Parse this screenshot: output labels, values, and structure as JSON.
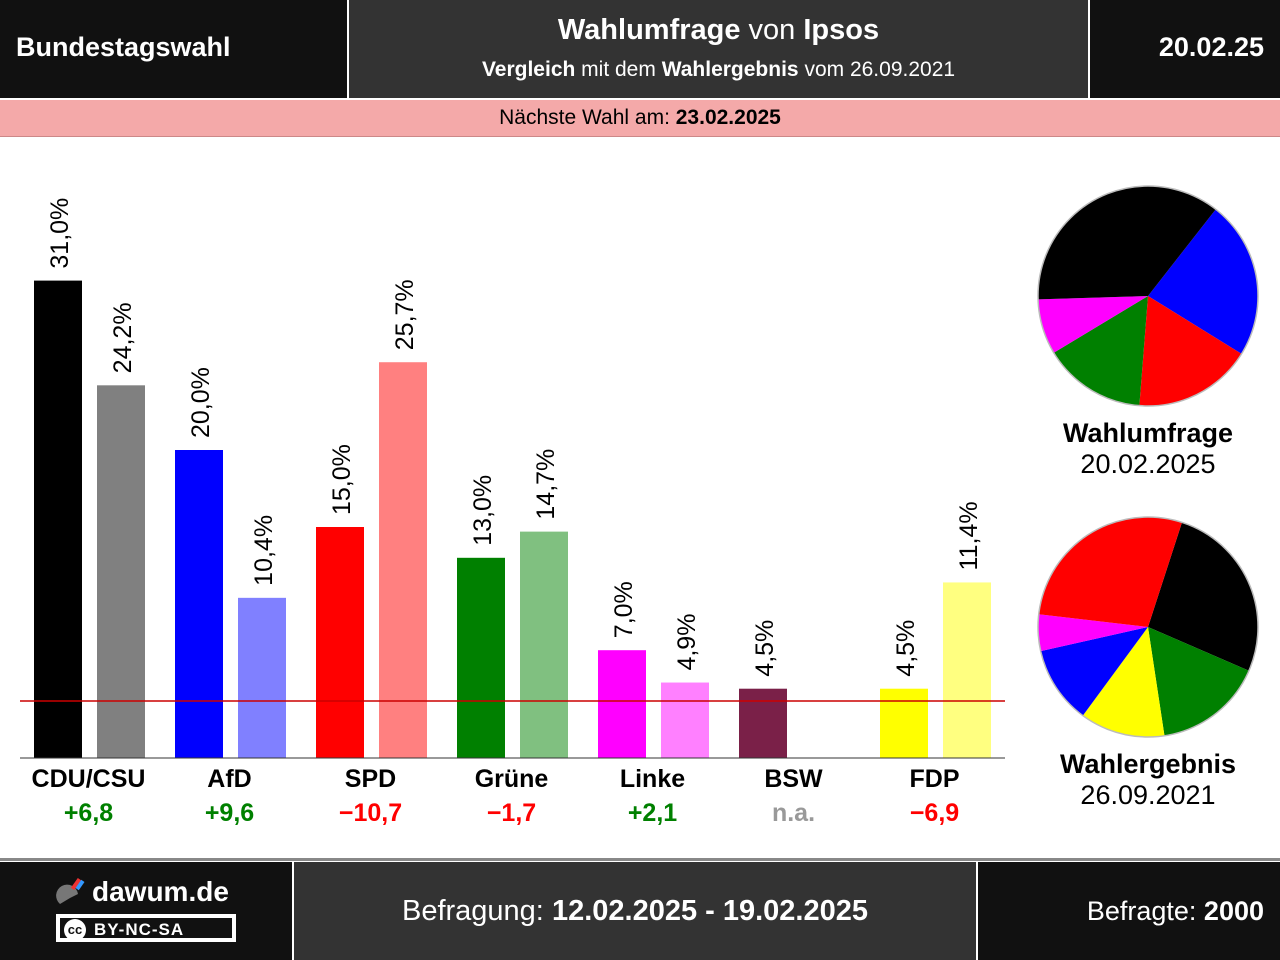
{
  "header": {
    "left_title": "Bundestagswahl",
    "center_line1_bold1": "Wahlumfrage",
    "center_line1_mid": " von ",
    "center_line1_bold2": "Ipsos",
    "center_line2_bold1": "Vergleich",
    "center_line2_mid": " mit dem ",
    "center_line2_bold2": "Wahlergebnis",
    "center_line2_end": " vom 26.09.2021",
    "date": "20.02.25"
  },
  "next_election": {
    "label": "Nächste Wahl am: ",
    "date": "23.02.2025"
  },
  "chart_data": {
    "type": "bar",
    "categories": [
      "CDU/CSU",
      "AfD",
      "SPD",
      "Grüne",
      "Linke",
      "BSW",
      "FDP"
    ],
    "series": [
      {
        "values": [
          31.0,
          20.0,
          15.0,
          13.0,
          7.0,
          4.5,
          4.5
        ],
        "labels": [
          "31,0%",
          "20,0%",
          "15,0%",
          "13,0%",
          "7,0%",
          "4,5%",
          "4,5%"
        ],
        "colors": [
          "#000000",
          "#0000ff",
          "#ff0000",
          "#008000",
          "#ff00ff",
          "#7a2048",
          "#ffff00"
        ]
      },
      {
        "values": [
          24.2,
          10.4,
          25.7,
          14.7,
          4.9,
          null,
          11.4
        ],
        "labels": [
          "24,2%",
          "10,4%",
          "25,7%",
          "14,7%",
          "4,9%",
          "",
          "11,4%"
        ],
        "colors": [
          "#808080",
          "#8080ff",
          "#ff8080",
          "#80c080",
          "#ff80ff",
          "#bc8fa3",
          "#ffff80"
        ]
      }
    ],
    "changes": [
      "+6,8",
      "+9,6",
      "−10,7",
      "−1,7",
      "+2,1",
      "n.a.",
      "−6,9"
    ],
    "change_colors": [
      "#008000",
      "#008000",
      "#ff0000",
      "#ff0000",
      "#008000",
      "#999999",
      "#ff0000"
    ],
    "threshold": 5,
    "ylim": [
      0,
      31
    ],
    "threshold_color": "#cc0000"
  },
  "pies": [
    {
      "title": "Wahlumfrage",
      "date": "20.02.2025",
      "slices": [
        {
          "value": 20.0,
          "color": "#0000ff"
        },
        {
          "value": 15.0,
          "color": "#ff0000"
        },
        {
          "value": 13.0,
          "color": "#008000"
        },
        {
          "value": 7.0,
          "color": "#ff00ff"
        },
        {
          "value": 31.0,
          "color": "#000000"
        }
      ]
    },
    {
      "title": "Wahlergebnis",
      "date": "26.09.2021",
      "slices": [
        {
          "value": 24.2,
          "color": "#000000"
        },
        {
          "value": 14.7,
          "color": "#008000"
        },
        {
          "value": 11.4,
          "color": "#ffff00"
        },
        {
          "value": 10.4,
          "color": "#0000ff"
        },
        {
          "value": 4.9,
          "color": "#ff00ff"
        },
        {
          "value": 25.7,
          "color": "#ff0000"
        }
      ]
    }
  ],
  "footer": {
    "site": "dawum.de",
    "license": "BY-NC-SA",
    "license_icon": "cc",
    "survey_label": "Befragung: ",
    "survey_period": "12.02.2025 - 19.02.2025",
    "respondents_label": "Befragte: ",
    "respondents": "2000"
  }
}
